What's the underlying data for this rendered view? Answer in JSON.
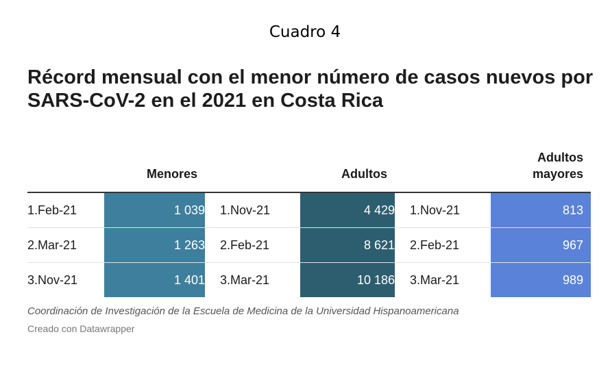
{
  "caption": "Cuadro 4",
  "title": "Récord mensual con el menor número de casos nuevos por SARS-CoV-2 en el 2021 en Costa Rica",
  "chart_data": {
    "type": "table",
    "columns": [
      {
        "name": "Menores",
        "color": "#3e7f9e",
        "rows": [
          {
            "month": "1.Feb-21",
            "value": "1 039"
          },
          {
            "month": "2.Mar-21",
            "value": "1 263"
          },
          {
            "month": "3.Nov-21",
            "value": "1 401"
          }
        ]
      },
      {
        "name": "Adultos",
        "color": "#2d5e6f",
        "rows": [
          {
            "month": "1.Nov-21",
            "value": "4 429"
          },
          {
            "month": "2.Feb-21",
            "value": "8 621"
          },
          {
            "month": "3.Mar-21",
            "value": "10 186"
          }
        ]
      },
      {
        "name_line1": "Adultos",
        "name_line2": "mayores",
        "color": "#5a82d8",
        "rows": [
          {
            "month": "1.Nov-21",
            "value": "813"
          },
          {
            "month": "2.Feb-21",
            "value": "967"
          },
          {
            "month": "3.Mar-21",
            "value": "989"
          }
        ]
      }
    ]
  },
  "source": "Coordinación de Investigación de la Escuela de Medicina de la Universidad Hispanoamericana",
  "credit": "Creado con Datawrapper"
}
